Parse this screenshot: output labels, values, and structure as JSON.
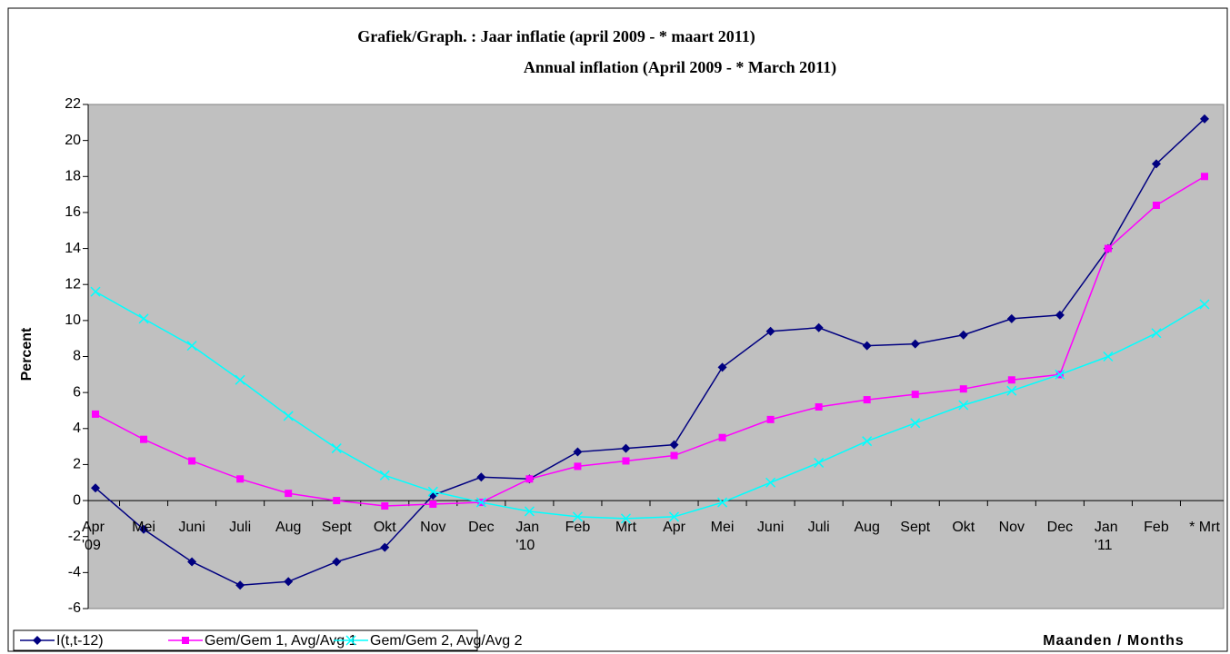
{
  "chart_data": {
    "type": "line",
    "title": "Grafiek/Graph. :  Jaar inflatie  (april 2009 -  * maart 2011)",
    "subtitle": "Annual inflation (April 2009 -  * March 2011)",
    "y_label": "Percent",
    "x_label": "Maanden / Months",
    "categories": [
      "Apr\n'09",
      "Mei",
      "Juni",
      "Juli",
      "Aug",
      "Sept",
      "Okt",
      "Nov",
      "Dec",
      "Jan\n'10",
      "Feb",
      "Mrt",
      "Apr",
      "Mei",
      "Juni",
      "Juli",
      "Aug",
      "Sept",
      "Okt",
      "Nov",
      "Dec",
      "Jan\n'11",
      "Feb",
      "* Mrt"
    ],
    "series": [
      {
        "name": "I(t,t-12)",
        "color": "#000080",
        "marker": "diamond",
        "values": [
          0.7,
          -1.6,
          -3.4,
          -4.7,
          -4.5,
          -3.4,
          -2.6,
          0.3,
          1.3,
          1.2,
          2.7,
          2.9,
          3.1,
          7.4,
          9.4,
          9.6,
          8.6,
          8.7,
          9.2,
          10.1,
          10.3,
          14.0,
          18.7,
          21.2
        ]
      },
      {
        "name": "Gem/Gem 1, Avg/Avg 1",
        "color": "#ff00ff",
        "marker": "square",
        "values": [
          4.8,
          3.4,
          2.2,
          1.2,
          0.4,
          0.0,
          -0.3,
          -0.2,
          -0.1,
          1.2,
          1.9,
          2.2,
          2.5,
          3.5,
          4.5,
          5.2,
          5.6,
          5.9,
          6.2,
          6.7,
          7.0,
          14.0,
          16.4,
          18.0
        ]
      },
      {
        "name": "Gem/Gem 2, Avg/Avg 2",
        "color": "#00ffff",
        "marker": "x",
        "values": [
          11.6,
          10.1,
          8.6,
          6.7,
          4.7,
          2.9,
          1.4,
          0.5,
          -0.1,
          -0.6,
          -0.9,
          -1.0,
          -0.9,
          -0.1,
          1.0,
          2.1,
          3.3,
          4.3,
          5.3,
          6.1,
          7.0,
          8.0,
          9.3,
          10.9
        ]
      }
    ],
    "ylim": [
      -6,
      22
    ],
    "yticks": [
      -6,
      -4,
      -2,
      0,
      2,
      4,
      6,
      8,
      10,
      12,
      14,
      16,
      18,
      20,
      22
    ],
    "grid": false,
    "plot_background": "#c0c0c0",
    "legend": "bottom-left"
  }
}
